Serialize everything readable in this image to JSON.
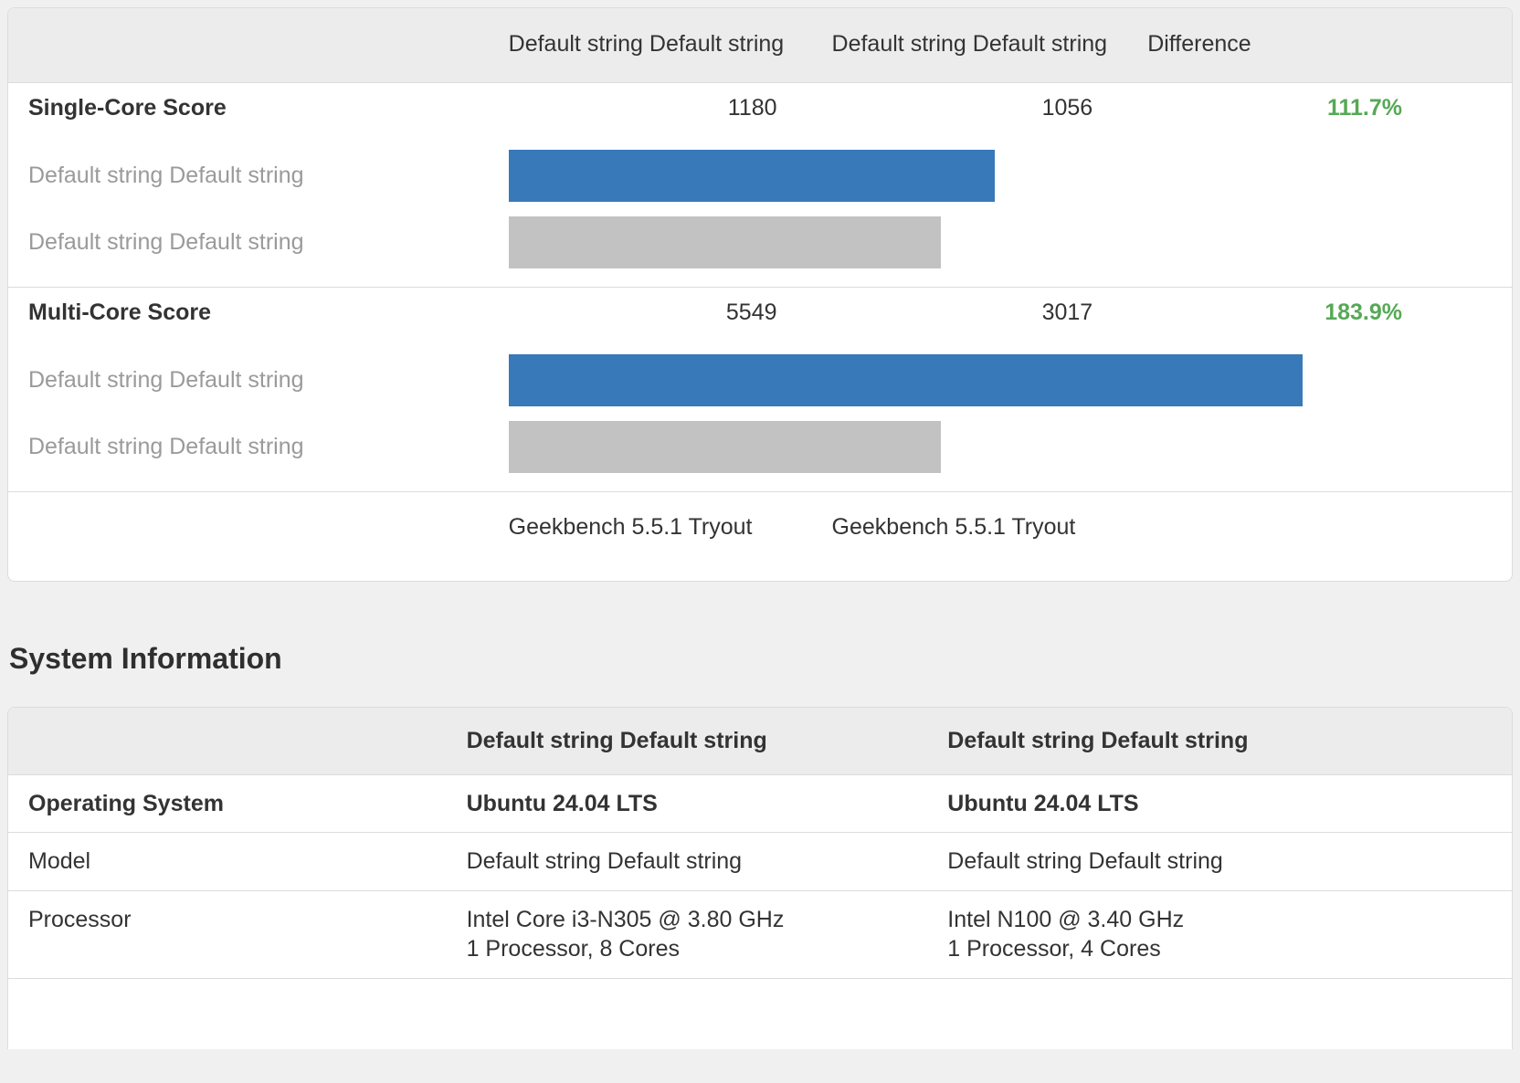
{
  "colors": {
    "bar_blue": "#3879b9",
    "bar_gray": "#c2c2c2",
    "diff_green": "#56a956",
    "header_bg": "#ececec",
    "border": "#dcdcdc",
    "page_bg": "#f0f0f1",
    "text_dark": "#333333",
    "text_gray": "#9a9a9a"
  },
  "comparison_table": {
    "header": {
      "system1": "Default string Default string",
      "system2": "Default string Default string",
      "difference": "Difference"
    },
    "single_core": {
      "metric": "Single-Core Score",
      "score1": "1180",
      "score2": "1056",
      "difference": "111.7%",
      "bar1_label": "Default string Default string",
      "bar2_label": "Default string Default string",
      "bar1_width_pct": 49.2,
      "bar2_width_pct": 43.7
    },
    "multi_core": {
      "metric": "Multi-Core Score",
      "score1": "5549",
      "score2": "3017",
      "difference": "183.9%",
      "bar1_label": "Default string Default string",
      "bar2_label": "Default string Default string",
      "bar1_width_pct": 80.3,
      "bar2_width_pct": 43.7
    },
    "footer": {
      "benchmark1": "Geekbench 5.5.1 Tryout",
      "benchmark2": "Geekbench 5.5.1 Tryout"
    }
  },
  "system_information": {
    "title": "System Information",
    "header": {
      "system1": "Default string Default string",
      "system2": "Default string Default string"
    },
    "rows": [
      {
        "label": "Operating System",
        "system1": "Ubuntu 24.04 LTS",
        "system2": "Ubuntu 24.04 LTS"
      },
      {
        "label": "Model",
        "system1": "Default string Default string",
        "system2": "Default string Default string"
      },
      {
        "label": "Processor",
        "system1": "Intel Core i3-N305 @ 3.80 GHz\n1 Processor, 8 Cores",
        "system2": "Intel N100 @ 3.40 GHz\n1 Processor, 4 Cores"
      }
    ]
  },
  "chart_data": {
    "type": "bar",
    "categories": [
      "Single-Core Score",
      "Multi-Core Score"
    ],
    "series": [
      {
        "name": "Default string Default string",
        "values": [
          1180,
          5549
        ],
        "color": "#3879b9"
      },
      {
        "name": "Default string Default string",
        "values": [
          1056,
          3017
        ],
        "color": "#c2c2c2"
      }
    ],
    "annotations": [
      "111.7%",
      "183.9%"
    ],
    "footnote": "Geekbench 5.5.1 Tryout"
  }
}
